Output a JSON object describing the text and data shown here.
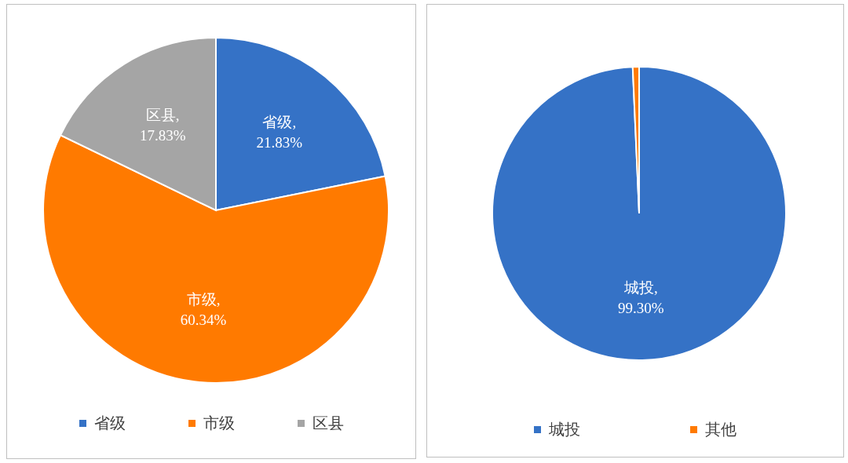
{
  "chart_data": [
    {
      "type": "pie",
      "categories": [
        "省级",
        "市级",
        "区县"
      ],
      "values": [
        21.83,
        60.34,
        17.83
      ],
      "colors": [
        "#3572c6",
        "#ff7a00",
        "#a5a5a5"
      ],
      "value_labels": [
        "省级,\n21.83%",
        "市级,\n60.34%",
        "区县,\n17.83%"
      ],
      "legend": "bottom"
    },
    {
      "type": "pie",
      "categories": [
        "城投",
        "其他"
      ],
      "values": [
        99.3,
        0.7
      ],
      "colors": [
        "#3572c6",
        "#ff7a00"
      ],
      "value_labels": [
        "城投,\n99.30%",
        null
      ],
      "legend": "bottom"
    }
  ]
}
